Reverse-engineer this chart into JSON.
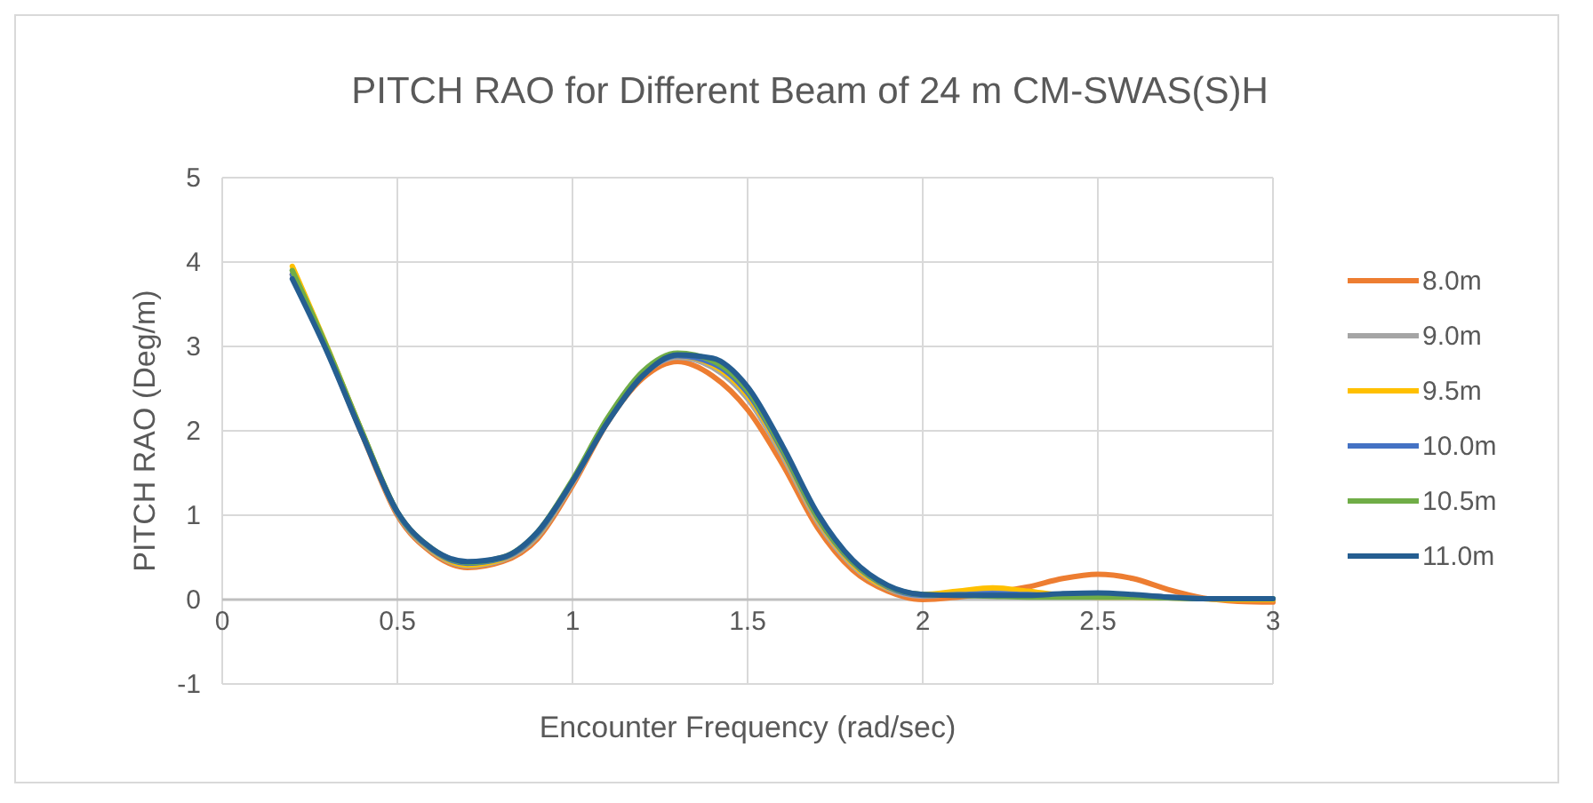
{
  "chart_data": {
    "type": "line",
    "title": "PITCH RAO for Different Beam of 24 m CM-SWAS(S)H",
    "xlabel": "Encounter Frequency (rad/sec)",
    "ylabel": "PITCH RAO (Deg/m)",
    "x": [
      0.2,
      0.3,
      0.4,
      0.5,
      0.6,
      0.7,
      0.8,
      0.9,
      1.0,
      1.1,
      1.2,
      1.3,
      1.4,
      1.5,
      1.6,
      1.7,
      1.8,
      1.9,
      2.0,
      2.1,
      2.2,
      2.3,
      2.4,
      2.5,
      2.6,
      2.7,
      2.8,
      2.9,
      3.0
    ],
    "series": [
      {
        "name": "8.0m",
        "color": "#ed7d31",
        "values": [
          3.85,
          2.95,
          1.95,
          1.0,
          0.55,
          0.38,
          0.45,
          0.72,
          1.35,
          2.1,
          2.62,
          2.82,
          2.65,
          2.25,
          1.6,
          0.85,
          0.35,
          0.1,
          0.0,
          0.03,
          0.08,
          0.15,
          0.25,
          0.3,
          0.25,
          0.12,
          0.02,
          -0.02,
          -0.03
        ]
      },
      {
        "name": "9.0m",
        "color": "#a5a5a5",
        "values": [
          3.9,
          2.97,
          1.97,
          1.02,
          0.57,
          0.4,
          0.47,
          0.75,
          1.38,
          2.12,
          2.66,
          2.87,
          2.75,
          2.38,
          1.7,
          0.92,
          0.4,
          0.13,
          0.04,
          0.07,
          0.1,
          0.08,
          0.06,
          0.06,
          0.05,
          0.03,
          0.01,
          0.0,
          0.0
        ]
      },
      {
        "name": "9.5m",
        "color": "#ffc000",
        "values": [
          3.95,
          2.99,
          1.98,
          1.03,
          0.58,
          0.41,
          0.48,
          0.77,
          1.4,
          2.14,
          2.68,
          2.89,
          2.78,
          2.42,
          1.74,
          0.95,
          0.42,
          0.14,
          0.06,
          0.1,
          0.14,
          0.1,
          0.05,
          0.03,
          0.03,
          0.02,
          0.01,
          0.0,
          0.0
        ]
      },
      {
        "name": "10.0m",
        "color": "#4472c4",
        "values": [
          3.85,
          2.96,
          1.97,
          1.03,
          0.59,
          0.43,
          0.49,
          0.78,
          1.4,
          2.12,
          2.66,
          2.89,
          2.8,
          2.45,
          1.76,
          0.97,
          0.44,
          0.15,
          0.05,
          0.06,
          0.07,
          0.06,
          0.05,
          0.06,
          0.05,
          0.03,
          0.01,
          null,
          null
        ]
      },
      {
        "name": "10.5m",
        "color": "#70ad47",
        "values": [
          3.9,
          2.98,
          1.98,
          1.04,
          0.6,
          0.44,
          0.5,
          0.8,
          1.42,
          2.15,
          2.7,
          2.92,
          2.83,
          2.48,
          1.78,
          0.98,
          0.45,
          0.16,
          0.06,
          0.05,
          0.04,
          0.03,
          0.03,
          0.03,
          0.03,
          0.02,
          0.01,
          0.01,
          0.01
        ]
      },
      {
        "name": "11.0m",
        "color": "#255e91",
        "values": [
          3.8,
          2.93,
          1.95,
          1.04,
          0.6,
          0.45,
          0.5,
          0.8,
          1.4,
          2.1,
          2.65,
          2.9,
          2.86,
          2.52,
          1.82,
          1.02,
          0.47,
          0.17,
          0.06,
          0.05,
          0.05,
          0.05,
          0.07,
          0.08,
          0.06,
          0.03,
          0.01,
          0.01,
          0.01
        ]
      }
    ],
    "xlim": [
      0,
      3
    ],
    "xticks": [
      0,
      0.5,
      1,
      1.5,
      2,
      2.5,
      3
    ],
    "ylim": [
      -1,
      5
    ],
    "yticks": [
      -1,
      0,
      1,
      2,
      3,
      4,
      5
    ],
    "grid": true,
    "legend": "right",
    "marker": "none",
    "line_style": "solid"
  }
}
